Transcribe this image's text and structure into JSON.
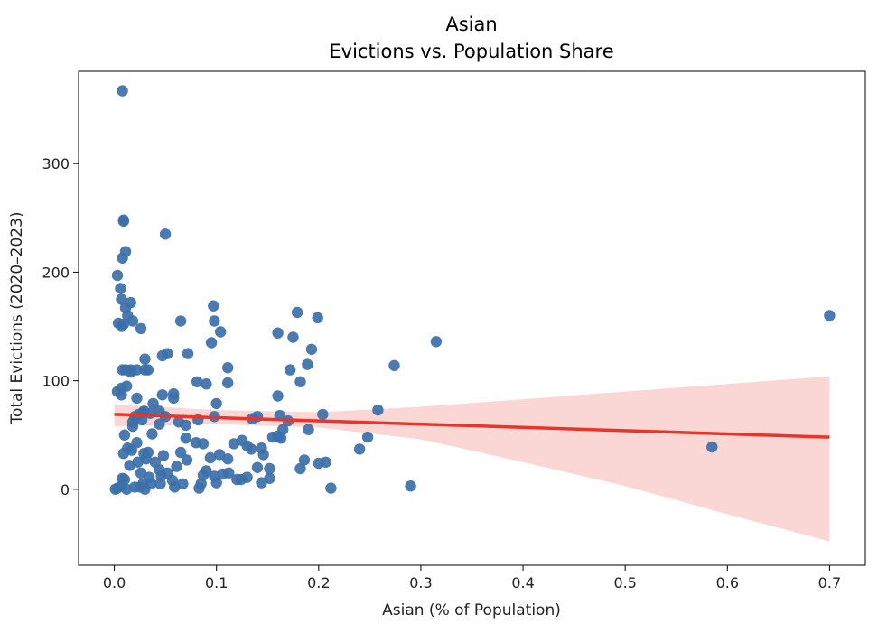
{
  "chart_data": {
    "type": "scatter",
    "title": "Asian",
    "subtitle": "Evictions vs. Population Share",
    "xlabel": "Asian (% of Population)",
    "ylabel": "Total Evictions (2020–2023)",
    "xlim": [
      -0.035,
      0.735
    ],
    "ylim": [
      -70,
      385
    ],
    "xticks": [
      0.0,
      0.1,
      0.2,
      0.3,
      0.4,
      0.5,
      0.6,
      0.7
    ],
    "xtick_labels": [
      "0.0",
      "0.1",
      "0.2",
      "0.3",
      "0.4",
      "0.5",
      "0.6",
      "0.7"
    ],
    "yticks": [
      0,
      100,
      200,
      300
    ],
    "ytick_labels": [
      "0",
      "100",
      "200",
      "300"
    ],
    "grid": false,
    "colors": {
      "points": "#3b6fa8",
      "regression": "#e8352b",
      "band": "#f5b5b0"
    },
    "regression": {
      "x": [
        0.0,
        0.7
      ],
      "y": [
        69,
        48
      ]
    },
    "confidence_band": {
      "x": [
        0.0,
        0.1,
        0.2,
        0.3,
        0.4,
        0.5,
        0.6,
        0.7
      ],
      "upper": [
        78,
        73,
        71,
        76,
        83,
        90,
        97,
        104
      ],
      "lower": [
        58,
        60,
        57,
        46,
        25,
        3,
        -23,
        -48
      ]
    },
    "points": [
      [
        0.008,
        367
      ],
      [
        0.009,
        248
      ],
      [
        0.009,
        247
      ],
      [
        0.05,
        235
      ],
      [
        0.011,
        219
      ],
      [
        0.008,
        213
      ],
      [
        0.003,
        197
      ],
      [
        0.006,
        185
      ],
      [
        0.007,
        175
      ],
      [
        0.016,
        172
      ],
      [
        0.097,
        169
      ],
      [
        0.011,
        167
      ],
      [
        0.179,
        163
      ],
      [
        0.013,
        160
      ],
      [
        0.199,
        158
      ],
      [
        0.018,
        155
      ],
      [
        0.065,
        155
      ],
      [
        0.098,
        155
      ],
      [
        0.004,
        153
      ],
      [
        0.009,
        152
      ],
      [
        0.007,
        150
      ],
      [
        0.026,
        148
      ],
      [
        0.104,
        145
      ],
      [
        0.16,
        144
      ],
      [
        0.175,
        140
      ],
      [
        0.315,
        136
      ],
      [
        0.095,
        135
      ],
      [
        0.193,
        129
      ],
      [
        0.072,
        125
      ],
      [
        0.052,
        125
      ],
      [
        0.047,
        123
      ],
      [
        0.03,
        120
      ],
      [
        0.189,
        115
      ],
      [
        0.274,
        114
      ],
      [
        0.111,
        112
      ],
      [
        0.008,
        110
      ],
      [
        0.016,
        110
      ],
      [
        0.033,
        110
      ],
      [
        0.03,
        110
      ],
      [
        0.022,
        110
      ],
      [
        0.011,
        110
      ],
      [
        0.172,
        110
      ],
      [
        0.016,
        108
      ],
      [
        0.182,
        99
      ],
      [
        0.081,
        99
      ],
      [
        0.111,
        98
      ],
      [
        0.09,
        97
      ],
      [
        0.012,
        95
      ],
      [
        0.007,
        93
      ],
      [
        0.003,
        90
      ],
      [
        0.058,
        88
      ],
      [
        0.047,
        87
      ],
      [
        0.007,
        87
      ],
      [
        0.16,
        86
      ],
      [
        0.022,
        84
      ],
      [
        0.058,
        84
      ],
      [
        0.1,
        79
      ],
      [
        0.038,
        79
      ],
      [
        0.028,
        71
      ],
      [
        0.044,
        72
      ],
      [
        0.14,
        67
      ],
      [
        0.162,
        68
      ],
      [
        0.204,
        69
      ],
      [
        0.05,
        67
      ],
      [
        0.258,
        73
      ],
      [
        0.098,
        67
      ],
      [
        0.035,
        70
      ],
      [
        0.029,
        72
      ],
      [
        0.024,
        69
      ],
      [
        0.02,
        67
      ],
      [
        0.018,
        62
      ],
      [
        0.027,
        64
      ],
      [
        0.063,
        62
      ],
      [
        0.135,
        65
      ],
      [
        0.17,
        63
      ],
      [
        0.044,
        60
      ],
      [
        0.07,
        59
      ],
      [
        0.018,
        58
      ],
      [
        0.082,
        64
      ],
      [
        0.165,
        55
      ],
      [
        0.19,
        55
      ],
      [
        0.16,
        49
      ],
      [
        0.01,
        50
      ],
      [
        0.037,
        51
      ],
      [
        0.07,
        47
      ],
      [
        0.125,
        45
      ],
      [
        0.163,
        47
      ],
      [
        0.155,
        48
      ],
      [
        0.248,
        48
      ],
      [
        0.022,
        43
      ],
      [
        0.08,
        43
      ],
      [
        0.087,
        42
      ],
      [
        0.144,
        38
      ],
      [
        0.013,
        38
      ],
      [
        0.134,
        37
      ],
      [
        0.017,
        36
      ],
      [
        0.24,
        37
      ],
      [
        0.585,
        39
      ],
      [
        0.117,
        42
      ],
      [
        0.13,
        40
      ],
      [
        0.033,
        34
      ],
      [
        0.009,
        33
      ],
      [
        0.065,
        34
      ],
      [
        0.094,
        29
      ],
      [
        0.103,
        32
      ],
      [
        0.048,
        31
      ],
      [
        0.029,
        33
      ],
      [
        0.031,
        28
      ],
      [
        0.146,
        32
      ],
      [
        0.111,
        28
      ],
      [
        0.186,
        27
      ],
      [
        0.071,
        27
      ],
      [
        0.023,
        25
      ],
      [
        0.04,
        25
      ],
      [
        0.152,
        19
      ],
      [
        0.2,
        24
      ],
      [
        0.207,
        25
      ],
      [
        0.015,
        22
      ],
      [
        0.14,
        20
      ],
      [
        0.044,
        18
      ],
      [
        0.09,
        17
      ],
      [
        0.112,
        15
      ],
      [
        0.106,
        14
      ],
      [
        0.182,
        19
      ],
      [
        0.052,
        15
      ],
      [
        0.026,
        15
      ],
      [
        0.046,
        12
      ],
      [
        0.008,
        10
      ],
      [
        0.124,
        9
      ],
      [
        0.152,
        10
      ],
      [
        0.13,
        11
      ],
      [
        0.098,
        12
      ],
      [
        0.057,
        8
      ],
      [
        0.028,
        5
      ],
      [
        0.067,
        5
      ],
      [
        0.1,
        6
      ],
      [
        0.036,
        5
      ],
      [
        0.045,
        5
      ],
      [
        0.085,
        5
      ],
      [
        0.12,
        9
      ],
      [
        0.144,
        6
      ],
      [
        0.02,
        2
      ],
      [
        0.003,
        1
      ],
      [
        0.001,
        0
      ],
      [
        0.012,
        0
      ],
      [
        0.025,
        2
      ],
      [
        0.03,
        0
      ],
      [
        0.059,
        2
      ],
      [
        0.083,
        1
      ],
      [
        0.29,
        3
      ],
      [
        0.212,
        1
      ],
      [
        0.007,
        3
      ],
      [
        0.01,
        9
      ],
      [
        0.034,
        11
      ],
      [
        0.087,
        13
      ],
      [
        0.061,
        21
      ],
      [
        0.7,
        160
      ]
    ]
  }
}
